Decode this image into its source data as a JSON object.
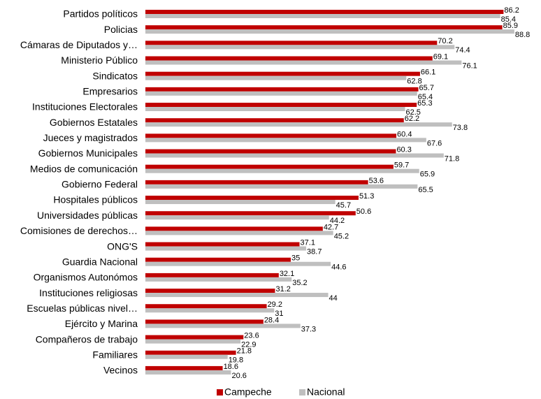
{
  "chart_data": {
    "type": "hbar",
    "categories": [
      "Partidos políticos",
      "Policias",
      "Cámaras de Diputados y…",
      "Ministerio Público",
      "Sindicatos",
      "Empresarios",
      "Instituciones Electorales",
      "Gobiernos Estatales",
      "Jueces y magistrados",
      "Gobiernos Municipales",
      "Medios de comunicación",
      "Gobierno Federal",
      "Hospitales públicos",
      "Universidades públicas",
      "Comisiones de derechos…",
      "ONG'S",
      "Guardia Nacional",
      "Organismos Autonómos",
      "Instituciones religiosas",
      "Escuelas públicas nivel…",
      "Ejército y Marina",
      "Compañeros de trabajo",
      "Familiares",
      "Vecinos"
    ],
    "series": [
      {
        "name": "Campeche",
        "color": "#c00000",
        "values": [
          86.2,
          85.9,
          70.2,
          69.1,
          66.1,
          65.7,
          65.3,
          62.2,
          60.4,
          60.3,
          59.7,
          53.6,
          51.3,
          50.6,
          42.7,
          37.1,
          35,
          32.1,
          31.2,
          29.2,
          28.4,
          23.6,
          21.8,
          18.6
        ]
      },
      {
        "name": "Nacional",
        "color": "#bfbfbf",
        "values": [
          85.4,
          88.8,
          74.4,
          76.1,
          62.8,
          65.4,
          62.5,
          73.8,
          67.6,
          71.8,
          65.9,
          65.5,
          45.7,
          44.2,
          45.2,
          38.7,
          44.6,
          35.2,
          44,
          31,
          37.3,
          22.9,
          19.8,
          20.6
        ]
      }
    ],
    "xlim": [
      0,
      90
    ]
  }
}
